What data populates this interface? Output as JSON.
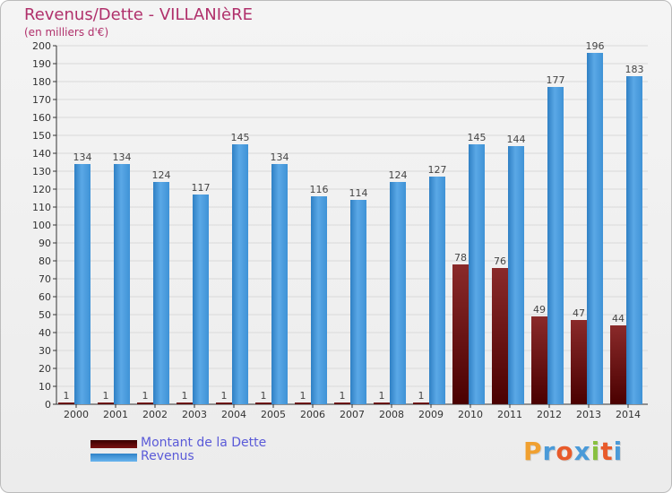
{
  "title": "Revenus/Dette - VILLANIèRE",
  "subtitle": "(en milliers d'€)",
  "legend": [
    {
      "name": "Montant de la Dette",
      "color": "#6b0000"
    },
    {
      "name": "Revenus",
      "color": "#5aa8e6"
    }
  ],
  "logo": {
    "text": "Proxiti",
    "letters": [
      {
        "ch": "P",
        "color": "#f0a030"
      },
      {
        "ch": "r",
        "color": "#4a9ad8"
      },
      {
        "ch": "o",
        "color": "#e85a2a"
      },
      {
        "ch": "x",
        "color": "#4a9ad8"
      },
      {
        "ch": "i",
        "color": "#88c040"
      },
      {
        "ch": "t",
        "color": "#e85a2a"
      },
      {
        "ch": "i",
        "color": "#4a9ad8"
      }
    ]
  },
  "chart_data": {
    "type": "bar",
    "title": "Revenus/Dette - VILLANIèRE",
    "subtitle": "(en milliers d'€)",
    "categories": [
      "2000",
      "2001",
      "2002",
      "2003",
      "2004",
      "2005",
      "2006",
      "2007",
      "2008",
      "2009",
      "2010",
      "2011",
      "2012",
      "2013",
      "2014"
    ],
    "series": [
      {
        "name": "Montant de la Dette",
        "color": "#6b0000",
        "values": [
          1,
          1,
          1,
          1,
          1,
          1,
          1,
          1,
          1,
          1,
          78,
          76,
          49,
          47,
          44
        ]
      },
      {
        "name": "Revenus",
        "color": "#5aa8e6",
        "values": [
          134,
          134,
          124,
          117,
          145,
          134,
          116,
          114,
          124,
          127,
          145,
          144,
          177,
          196,
          183
        ]
      }
    ],
    "ylim": [
      0,
      200
    ],
    "ytick_step": 10,
    "yticks": [
      "0",
      "10",
      "20",
      "30",
      "40",
      "50",
      "60",
      "70",
      "80",
      "90",
      "100",
      "110",
      "120",
      "130",
      "140",
      "150",
      "160",
      "170",
      "180",
      "190",
      "200"
    ],
    "grid": true,
    "xlabel": "",
    "ylabel": ""
  }
}
